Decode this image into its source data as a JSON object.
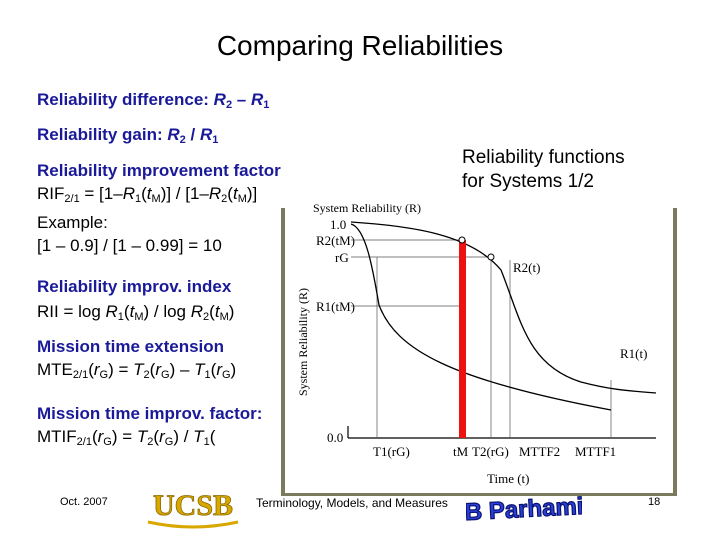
{
  "title": "Comparing Reliabilities",
  "left": {
    "diff_label": "Reliability difference: ",
    "diff_expr": [
      "R",
      "2",
      " – ",
      "R",
      "1"
    ],
    "gain_label": "Reliability gain: ",
    "gain_expr": [
      "R",
      "2",
      " / ",
      "R",
      "1"
    ],
    "rif_label": "Reliability improvement factor",
    "rif_formula": [
      "RIF",
      "2/1",
      " = [1–",
      "R",
      "1",
      "(",
      "t",
      "M",
      ")] / [1–",
      "R",
      "2",
      "(",
      "t",
      "M",
      ")]"
    ],
    "example_label": "Example:",
    "example_value": "[1 – 0.9] / [1 – 0.99] = 10",
    "rii_label": "Reliability improv. index",
    "rii_formula": [
      "RII = log ",
      "R",
      "1",
      "(",
      "t",
      "M",
      ") / log ",
      "R",
      "2",
      "(",
      "t",
      "M",
      ")"
    ],
    "mte_label": "Mission time extension",
    "mte_formula": [
      "MTE",
      "2/1",
      "(",
      "r",
      "G",
      ") = ",
      "T",
      "2",
      "(",
      "r",
      "G",
      ") – ",
      "T",
      "1",
      "(",
      "r",
      "G",
      ")"
    ],
    "mtif_label": "Mission time improv. factor:",
    "mtif_formula": [
      "MTIF",
      "2/1",
      "(",
      "r",
      "G",
      ") = ",
      "T",
      "2",
      "(",
      "r",
      "G",
      ") / ",
      "T",
      "1",
      "(",
      "r",
      "G",
      ")"
    ]
  },
  "side_note": {
    "line1": "Reliability functions",
    "line2": "for Systems 1/2"
  },
  "chart_data": {
    "type": "line",
    "title": "System Reliability (R)",
    "ylabel": "System Reliability (R)",
    "xlabel": "Time (t)",
    "y_tick_labels": [
      "1.0",
      "R2(tM)",
      "rG",
      "R1(tM)",
      "0.0"
    ],
    "x_tick_labels": [
      "T1(rG)",
      "tM",
      "T2(rG)",
      "MTTF2",
      "MTTF1"
    ],
    "series": [
      {
        "name": "R1(t)",
        "label": "R1(t)"
      },
      {
        "name": "R2(t)",
        "label": "R2(t)"
      }
    ],
    "background": "#ffffff",
    "frame_color": "#7a7a5c",
    "highlight_color": "#ee1111"
  },
  "footer": {
    "date": "Oct. 2007",
    "center": "Terminology, Models, and Measures",
    "page": "18",
    "logo_left": "UCSB",
    "logo_right": "B Parhami"
  }
}
